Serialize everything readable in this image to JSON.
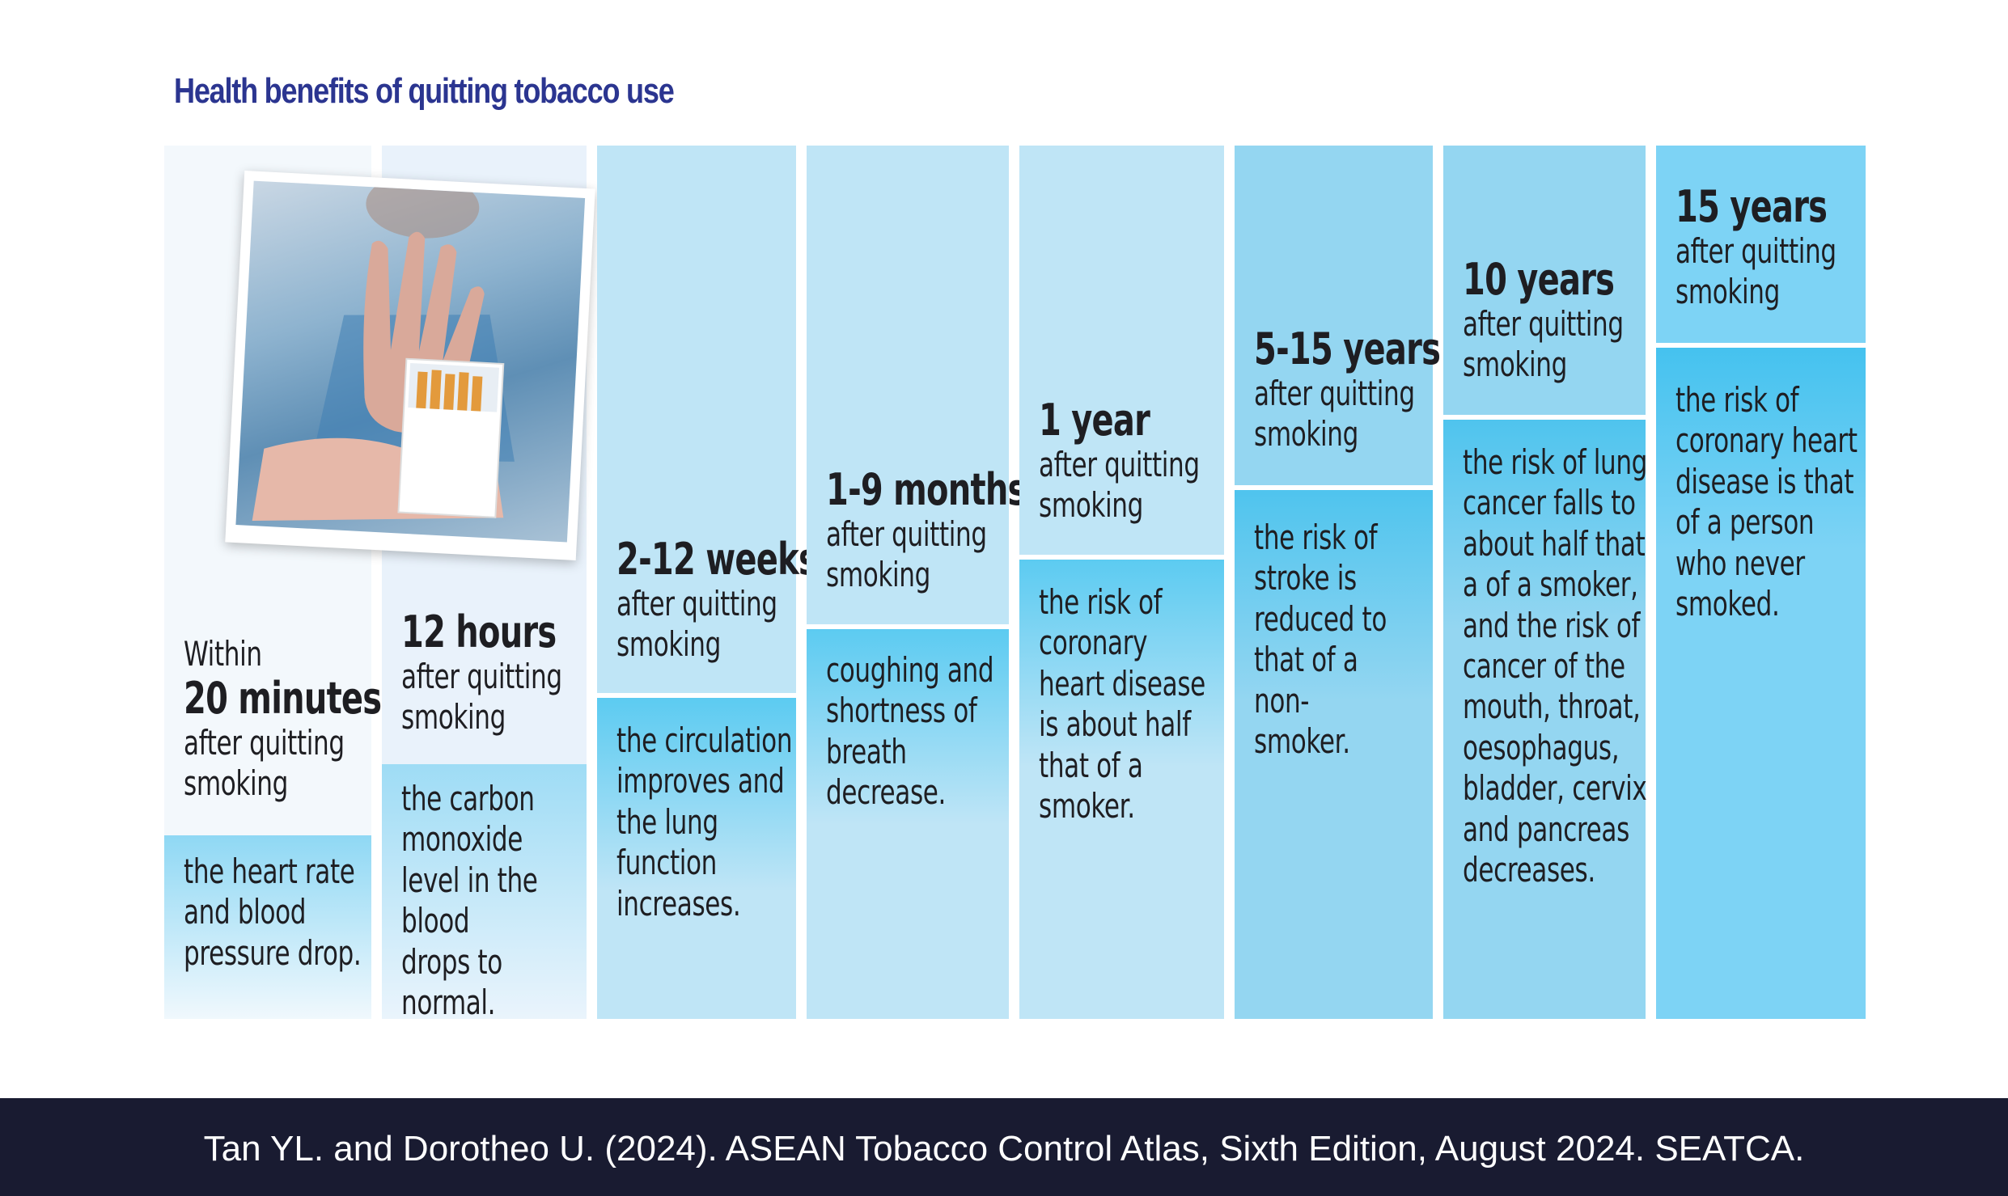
{
  "title": "Health benefits of quitting tobacco use",
  "columns": [
    {
      "prefix": "Within",
      "period": "20 minutes",
      "after": "after quitting smoking",
      "benefit": "the heart rate and blood pressure drop."
    },
    {
      "period": "12 hours",
      "after": "after quitting smoking",
      "benefit": "the carbon monoxide level in the blood drops to normal."
    },
    {
      "period": "2-12 weeks",
      "after": "after quitting smoking",
      "benefit": "the circulation improves and the lung function increases."
    },
    {
      "period": "1-9 months",
      "after": "after quitting smoking",
      "benefit": "coughing and shortness of breath decrease."
    },
    {
      "period": "1 year",
      "after": "after quitting smoking",
      "benefit": "the risk of coronary heart disease is about half that of a smoker."
    },
    {
      "period": "5-15 years",
      "after": "after quitting smoking",
      "benefit": "the risk of stroke is reduced to that of a non-smoker."
    },
    {
      "period": "10 years",
      "after": "after quitting smoking",
      "benefit": "the risk of lung cancer falls to about half that a of a smoker, and the risk of cancer of the mouth, throat, oesophagus, bladder, cervix and pancreas decreases."
    },
    {
      "period": "15 years",
      "after": "after quitting smoking",
      "benefit": "the risk of coronary heart disease is that of a person who never smoked."
    }
  ],
  "footer": "Tan YL. and Dorotheo U. (2024). ASEAN Tobacco Control Atlas, Sixth Edition, August 2024. SEATCA.",
  "colors": {
    "title": "#2b3590",
    "footer_bg": "#191b31",
    "light": "#f2f7fc",
    "mid": "#bfe5f6",
    "strong": "#4fc4ee"
  },
  "photo_icon": "hand-refusing-cigarettes-photo"
}
